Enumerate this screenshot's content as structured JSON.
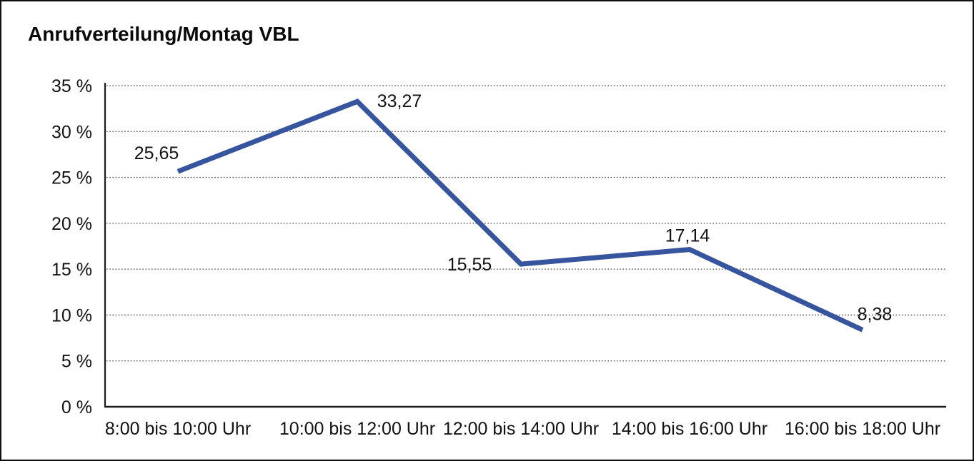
{
  "chart": {
    "title": "Anrufverteilung/Montag VBL"
  },
  "chart_data": {
    "type": "line",
    "title": "Anrufverteilung/Montag VBL",
    "categories": [
      "8:00 bis 10:00 Uhr",
      "10:00 bis 12:00 Uhr",
      "12:00 bis 14:00 Uhr",
      "14:00 bis 16:00 Uhr",
      "16:00 bis 18:00 Uhr"
    ],
    "values": [
      25.65,
      33.27,
      15.55,
      17.14,
      8.38
    ],
    "point_labels": [
      "25,65",
      "33,27",
      "15,55",
      "17,14",
      "8,38"
    ],
    "unit": "%",
    "decimal_separator": ",",
    "y_ticks": [
      {
        "value": 35,
        "label": "35 %"
      },
      {
        "value": 30,
        "label": "30 %"
      },
      {
        "value": 25,
        "label": "25 %"
      },
      {
        "value": 20,
        "label": "20 %"
      },
      {
        "value": 15,
        "label": "15 %"
      },
      {
        "value": 10,
        "label": "10 %"
      },
      {
        "value": 5,
        "label": "5 %"
      },
      {
        "value": 0,
        "label": "0 %"
      }
    ],
    "ylim": [
      0,
      35
    ],
    "xlabel": "",
    "ylabel": "",
    "legend": "none",
    "grid": "horizontal-dotted",
    "colors": {
      "line": "#36559e",
      "text": "#121212",
      "axis": "#1c1c1c",
      "grid": "#454545",
      "background": "#ffffff"
    }
  }
}
